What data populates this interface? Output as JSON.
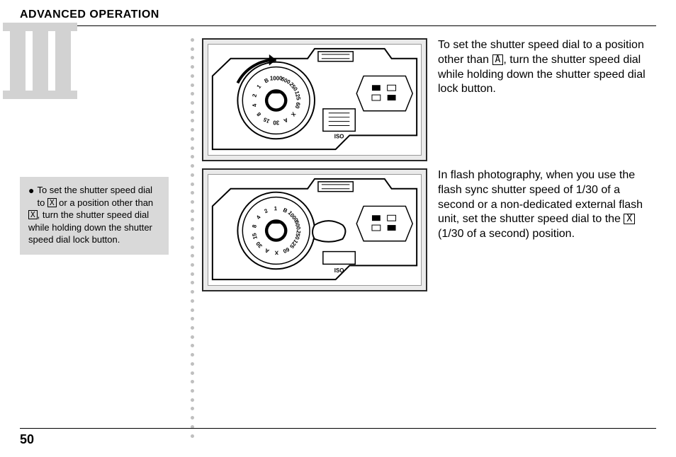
{
  "header": {
    "title": "ADVANCED OPERATION"
  },
  "romanNumeral": {
    "value": "III",
    "fill": "#d2d2d2"
  },
  "sidebarNote": {
    "bullet": "●",
    "textPrefix": "To set the shutter speed dial to ",
    "box1": "X",
    "textMid": " or a position other than ",
    "box2": "X",
    "textSuffix": ", turn the shutter speed dial while holding down the shutter speed dial lock button."
  },
  "paragraph1": {
    "prefix": "To set the shutter speed dial to a position other than ",
    "box": "A",
    "suffix": ", turn the shutter speed dial while holding down the shutter speed dial lock button."
  },
  "paragraph2": {
    "prefix": "In flash photography, when you use the flash sync shutter speed of 1/30 of a second or a non-dedicated external flash unit, set the shutter speed dial to the ",
    "box": "X",
    "suffix": " (1/30 of a second) position."
  },
  "pageNumber": "50",
  "dots": {
    "count": 45,
    "color": "#bfbfbf"
  },
  "figure": {
    "isoLabel": "ISO",
    "dialNumbers": [
      "1000",
      "500",
      "250",
      "125",
      "60",
      "X",
      "A",
      "30",
      "15",
      "8",
      "4",
      "2",
      "1",
      "B"
    ]
  }
}
